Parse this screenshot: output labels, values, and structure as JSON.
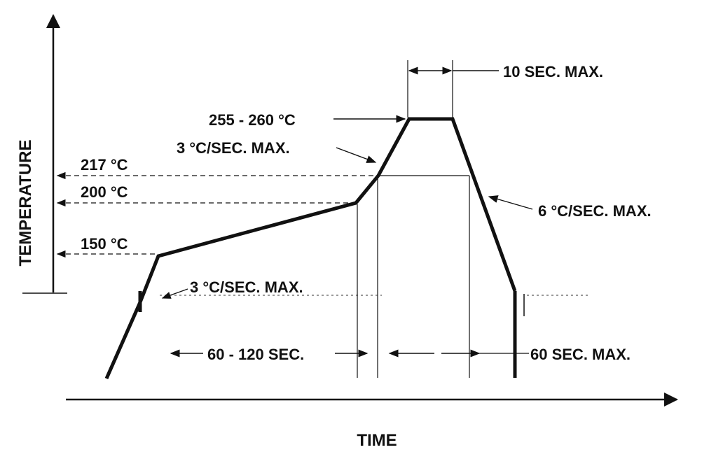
{
  "diagram": {
    "axes": {
      "y_label": "TEMPERATURE",
      "x_label": "TIME"
    },
    "temperature_levels": {
      "t217": "217 °C",
      "t200": "200 °C",
      "t150": "150 °C"
    },
    "annotations": {
      "peak": "255 - 260 °C",
      "peak_time": "10 SEC. MAX.",
      "ramp_up_upper": "3 °C/SEC. MAX.",
      "ramp_down": "6 °C/SEC. MAX.",
      "ramp_up_lower": "3 °C/SEC. MAX.",
      "soak_time": "60 - 120 SEC.",
      "liquidus_time": "60 SEC. MAX."
    }
  }
}
